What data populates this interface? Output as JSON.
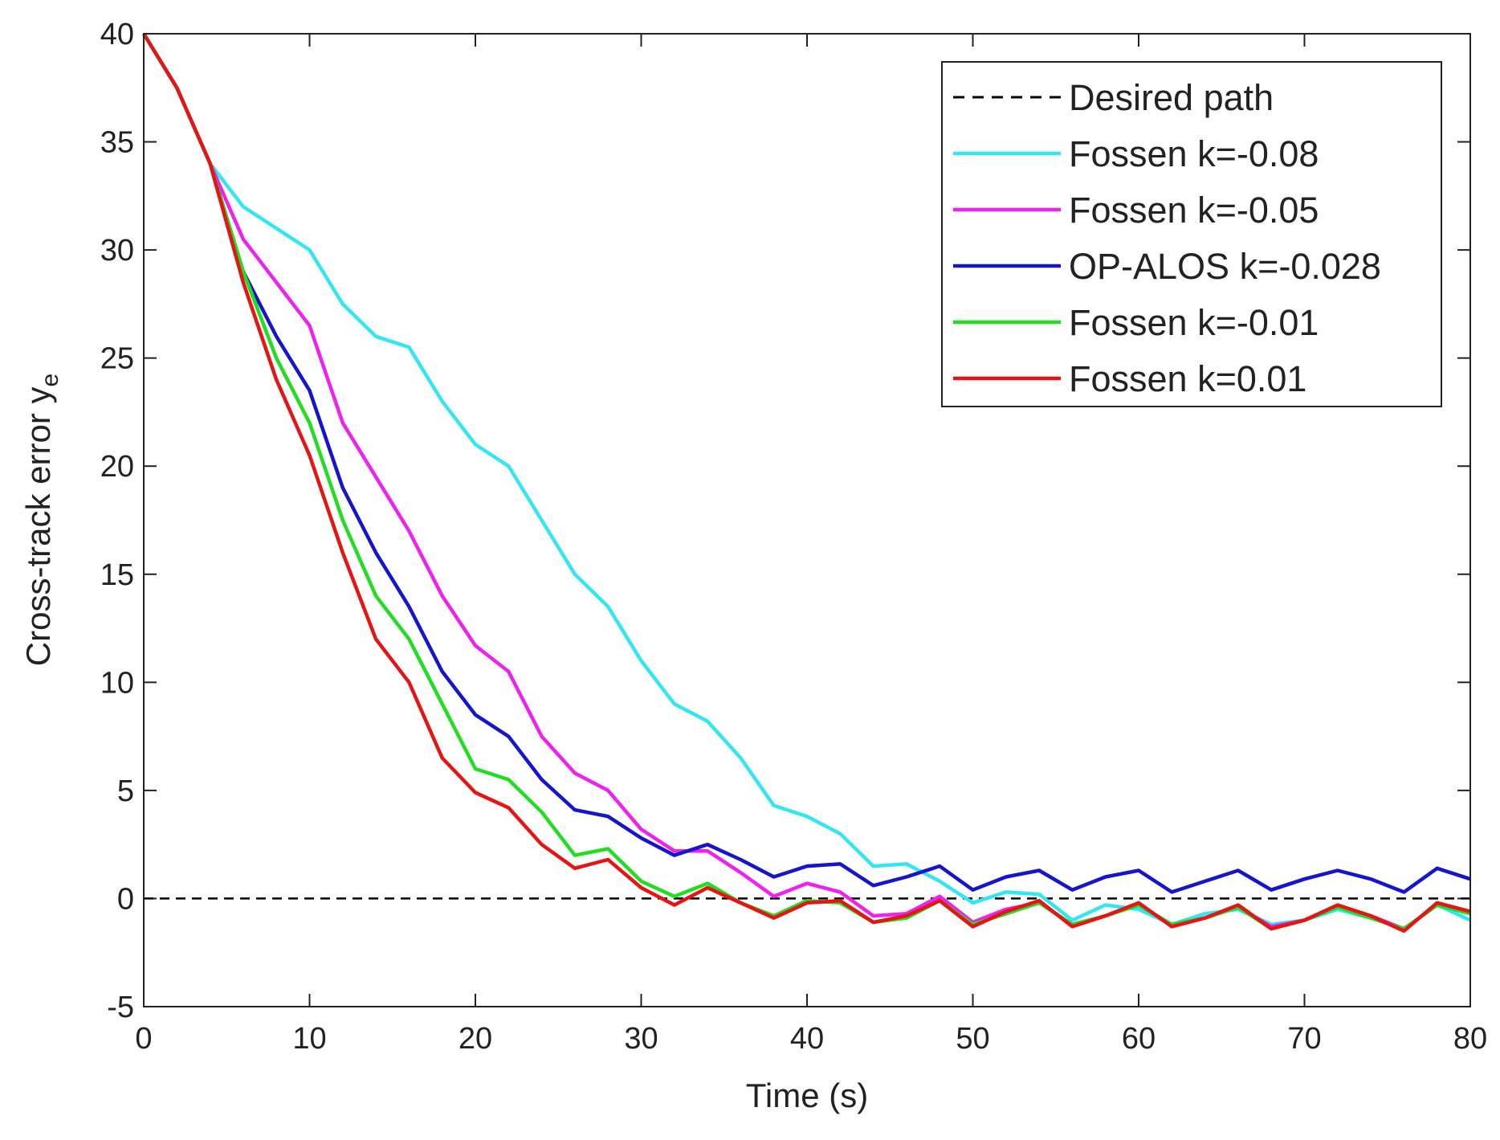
{
  "chart_data": {
    "type": "line",
    "xlabel": "Time (s)",
    "ylabel": "Cross-track error y",
    "ylabel_subscript": "e",
    "x": [
      0,
      2,
      4,
      6,
      8,
      10,
      12,
      14,
      16,
      18,
      20,
      22,
      24,
      26,
      28,
      30,
      32,
      34,
      36,
      38,
      40,
      42,
      44,
      46,
      48,
      50,
      52,
      54,
      56,
      58,
      60,
      62,
      64,
      66,
      68,
      70,
      72,
      74,
      76,
      78,
      80
    ],
    "xlim": [
      0,
      80
    ],
    "xticks": [
      0,
      10,
      20,
      30,
      40,
      50,
      60,
      70,
      80
    ],
    "ylim": [
      -5,
      40
    ],
    "yticks": [
      -5,
      0,
      5,
      10,
      15,
      20,
      25,
      30,
      35,
      40
    ],
    "legend": "upper right",
    "series": [
      {
        "name": "Desired path",
        "color": "#000000",
        "line_style": "dashed",
        "values": [
          0,
          0,
          0,
          0,
          0,
          0,
          0,
          0,
          0,
          0,
          0,
          0,
          0,
          0,
          0,
          0,
          0,
          0,
          0,
          0,
          0,
          0,
          0,
          0,
          0,
          0,
          0,
          0,
          0,
          0,
          0,
          0,
          0,
          0,
          0,
          0,
          0,
          0,
          0,
          0,
          0
        ]
      },
      {
        "name": "Fossen k=-0.08",
        "color": "#33e6f2",
        "line_style": "solid",
        "values": [
          40,
          37.5,
          34,
          32,
          31,
          30,
          27.5,
          26,
          25.5,
          23,
          21,
          20,
          17.5,
          15,
          13.5,
          11,
          9,
          8.2,
          6.5,
          4.3,
          3.8,
          3,
          1.5,
          1.6,
          0.8,
          -0.2,
          0.3,
          0.2,
          -1,
          -0.3,
          -0.5,
          -1.2,
          -0.7,
          -0.5,
          -1.2,
          -1,
          -0.5,
          -0.9,
          -1.4,
          -0.3,
          -1
        ]
      },
      {
        "name": "Fossen k=-0.05",
        "color": "#ee22ee",
        "line_style": "solid",
        "values": [
          40,
          37.5,
          34,
          30.5,
          28.5,
          26.5,
          22,
          19.5,
          17,
          14,
          11.7,
          10.5,
          7.5,
          5.8,
          5,
          3.2,
          2.2,
          2.2,
          1.2,
          0.1,
          0.7,
          0.3,
          -0.8,
          -0.7,
          0.1,
          -1.1,
          -0.5,
          -0.2,
          -1.2,
          -0.8,
          -0.3,
          -1.2,
          -0.9,
          -0.4,
          -1.3,
          -1,
          -0.4,
          -0.8,
          -1.4,
          -0.3,
          -0.6
        ]
      },
      {
        "name": "OP-ALOS k=-0.028",
        "color": "#1515cc",
        "line_style": "solid",
        "values": [
          40,
          37.5,
          34,
          29,
          26,
          23.5,
          19,
          16,
          13.5,
          10.5,
          8.5,
          7.5,
          5.5,
          4.1,
          3.8,
          2.8,
          2,
          2.5,
          1.8,
          1,
          1.5,
          1.6,
          0.6,
          1,
          1.5,
          0.4,
          1,
          1.3,
          0.4,
          1,
          1.3,
          0.3,
          0.8,
          1.3,
          0.4,
          0.9,
          1.3,
          0.9,
          0.3,
          1.4,
          0.9
        ]
      },
      {
        "name": "Fossen k=-0.01",
        "color": "#22dd22",
        "line_style": "solid",
        "values": [
          40,
          37.5,
          34,
          29,
          25,
          22,
          17.5,
          14,
          12,
          9,
          6,
          5.5,
          4,
          2,
          2.3,
          0.8,
          0.1,
          0.7,
          -0.2,
          -0.8,
          -0.1,
          -0.2,
          -1.1,
          -0.9,
          -0.1,
          -1.2,
          -0.7,
          -0.2,
          -1.2,
          -0.8,
          -0.3,
          -1.2,
          -0.9,
          -0.4,
          -1.4,
          -1,
          -0.4,
          -0.9,
          -1.4,
          -0.3,
          -0.7
        ]
      },
      {
        "name": "Fossen k=0.01",
        "color": "#e51515",
        "line_style": "solid",
        "values": [
          40,
          37.5,
          34,
          28.5,
          24,
          20.5,
          16,
          12,
          10,
          6.5,
          4.9,
          4.2,
          2.5,
          1.4,
          1.8,
          0.5,
          -0.3,
          0.5,
          -0.2,
          -0.9,
          -0.2,
          -0.1,
          -1.1,
          -0.8,
          -0.1,
          -1.3,
          -0.6,
          -0.1,
          -1.3,
          -0.8,
          -0.2,
          -1.3,
          -0.9,
          -0.3,
          -1.4,
          -1,
          -0.3,
          -0.8,
          -1.5,
          -0.2,
          -0.6
        ]
      }
    ]
  }
}
